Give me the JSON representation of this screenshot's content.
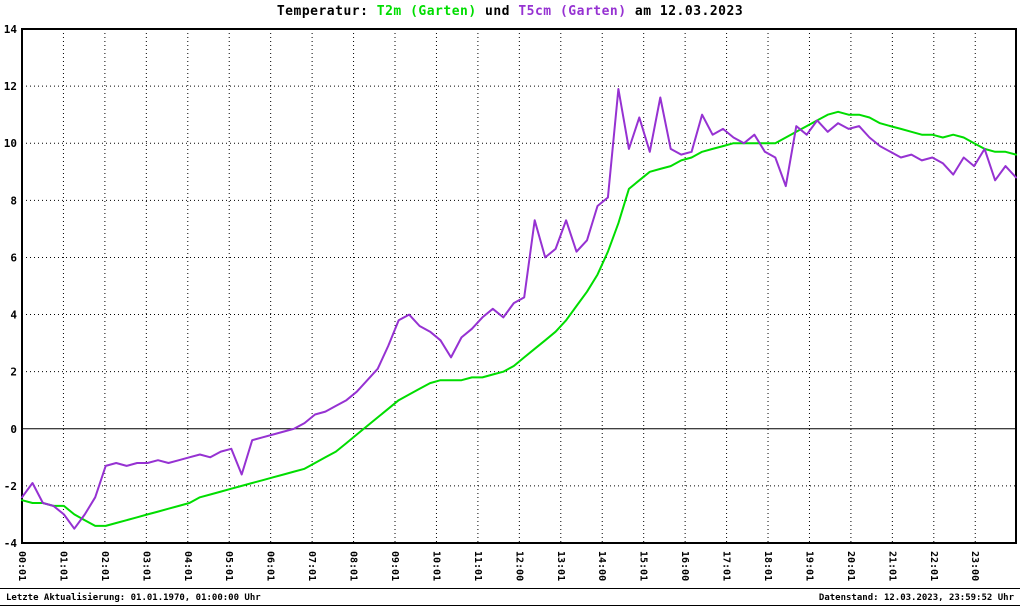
{
  "title": {
    "prefix": "Temperatur: ",
    "series1": "T2m (Garten)",
    "mid": " und ",
    "series2": "T5cm (Garten)",
    "suffix": " am 12.03.2023"
  },
  "footer": {
    "left": "Letzte Aktualisierung: 01.01.1970, 01:00:00 Uhr",
    "right": "Datenstand: 12.03.2023, 23:59:52 Uhr"
  },
  "colors": {
    "t2m": "#00dd00",
    "t5cm": "#9632d2",
    "grid": "#000000",
    "background": "#ffffff"
  },
  "chart_data": {
    "type": "line",
    "title": "Temperatur: T2m (Garten) und T5cm (Garten) am 12.03.2023",
    "xlabel": "",
    "ylabel": "",
    "ylim": [
      -4,
      14
    ],
    "y_ticks": [
      14,
      12,
      10,
      8,
      6,
      4,
      2,
      0,
      -2,
      -4
    ],
    "x_axis_type": "time",
    "x_start": "00:00",
    "x_end": "23:59",
    "x_tick_labels": [
      "00:01",
      "01:01",
      "02:01",
      "03:01",
      "04:01",
      "05:01",
      "06:01",
      "07:01",
      "08:01",
      "09:01",
      "10:01",
      "11:01",
      "12:00",
      "13:01",
      "14:00",
      "15:01",
      "16:00",
      "17:01",
      "18:01",
      "19:01",
      "20:01",
      "21:01",
      "22:01",
      "23:00"
    ],
    "grid": "dotted",
    "zero_line": true,
    "legend_position": "in-title",
    "sampling_interval_minutes": 15,
    "series": [
      {
        "name": "T2m (Garten)",
        "color": "#00dd00",
        "values": [
          -2.5,
          -2.6,
          -2.6,
          -2.7,
          -2.7,
          -3.0,
          -3.2,
          -3.4,
          -3.4,
          -3.3,
          -3.2,
          -3.1,
          -3.0,
          -2.9,
          -2.8,
          -2.7,
          -2.6,
          -2.4,
          -2.3,
          -2.2,
          -2.1,
          -2.0,
          -1.9,
          -1.8,
          -1.7,
          -1.6,
          -1.5,
          -1.4,
          -1.2,
          -1.0,
          -0.8,
          -0.5,
          -0.2,
          0.1,
          0.4,
          0.7,
          1.0,
          1.2,
          1.4,
          1.6,
          1.7,
          1.7,
          1.7,
          1.8,
          1.8,
          1.9,
          2.0,
          2.2,
          2.5,
          2.8,
          3.1,
          3.4,
          3.8,
          4.3,
          4.8,
          5.4,
          6.2,
          7.2,
          8.4,
          8.7,
          9.0,
          9.1,
          9.2,
          9.4,
          9.5,
          9.7,
          9.8,
          9.9,
          10.0,
          10.0,
          10.0,
          10.0,
          10.0,
          10.2,
          10.4,
          10.6,
          10.8,
          11.0,
          11.1,
          11.0,
          11.0,
          10.9,
          10.7,
          10.6,
          10.5,
          10.4,
          10.3,
          10.3,
          10.2,
          10.3,
          10.2,
          10.0,
          9.8,
          9.7,
          9.7,
          9.6
        ]
      },
      {
        "name": "T5cm (Garten)",
        "color": "#9632d2",
        "values": [
          -2.4,
          -1.9,
          -2.6,
          -2.7,
          -3.0,
          -3.5,
          -3.0,
          -2.4,
          -1.3,
          -1.2,
          -1.3,
          -1.2,
          -1.2,
          -1.1,
          -1.2,
          -1.1,
          -1.0,
          -0.9,
          -1.0,
          -0.8,
          -0.7,
          -1.6,
          -0.4,
          -0.3,
          -0.2,
          -0.1,
          0.0,
          0.2,
          0.5,
          0.6,
          0.8,
          1.0,
          1.3,
          1.7,
          2.1,
          2.9,
          3.8,
          4.0,
          3.6,
          3.4,
          3.1,
          2.5,
          3.2,
          3.5,
          3.9,
          4.2,
          3.9,
          4.4,
          4.6,
          7.3,
          6.0,
          6.3,
          7.3,
          6.2,
          6.6,
          7.8,
          8.1,
          11.9,
          9.8,
          10.9,
          9.7,
          11.6,
          9.8,
          9.6,
          9.7,
          11.0,
          10.3,
          10.5,
          10.2,
          10.0,
          10.3,
          9.7,
          9.5,
          8.5,
          10.6,
          10.3,
          10.8,
          10.4,
          10.7,
          10.5,
          10.6,
          10.2,
          9.9,
          9.7,
          9.5,
          9.6,
          9.4,
          9.5,
          9.3,
          8.9,
          9.5,
          9.2,
          9.8,
          8.7,
          9.2,
          8.8
        ]
      }
    ]
  }
}
